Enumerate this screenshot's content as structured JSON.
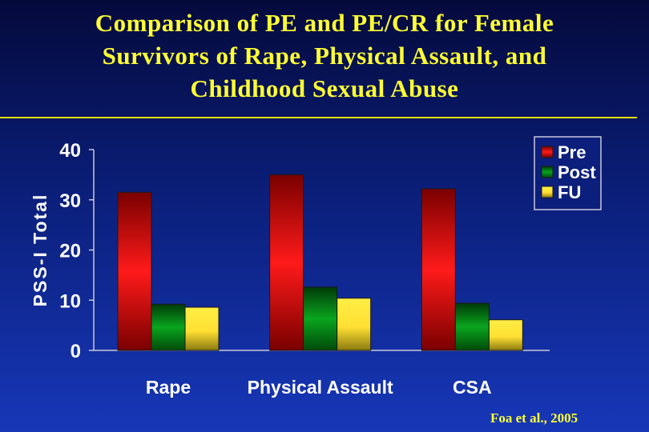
{
  "slide": {
    "title_lines": [
      "Comparison of PE and PE/CR for Female",
      "Survivors of Rape, Physical Assault, and",
      "Childhood Sexual Abuse"
    ],
    "source": "Foa et al., 2005"
  },
  "colors": {
    "title": "#ffff33",
    "background": "#0b1f7a",
    "pre": "#ff1a1a",
    "post": "#0a8a1a",
    "fu": "#ffe033"
  },
  "chart_data": {
    "type": "bar",
    "categories": [
      "Rape",
      "Physical Assault",
      "CSA"
    ],
    "series": [
      {
        "name": "Pre",
        "values": [
          31.5,
          35,
          32.2
        ]
      },
      {
        "name": "Post",
        "values": [
          9.2,
          12.6,
          9.4
        ]
      },
      {
        "name": "FU",
        "values": [
          8.6,
          10.4,
          6.1
        ]
      }
    ],
    "ylabel": "PSS-I Total",
    "xlabel": "",
    "ylim": [
      0,
      40
    ],
    "yticks": [
      0,
      10,
      20,
      30,
      40
    ],
    "grid": false,
    "legend_position": "top-right"
  }
}
